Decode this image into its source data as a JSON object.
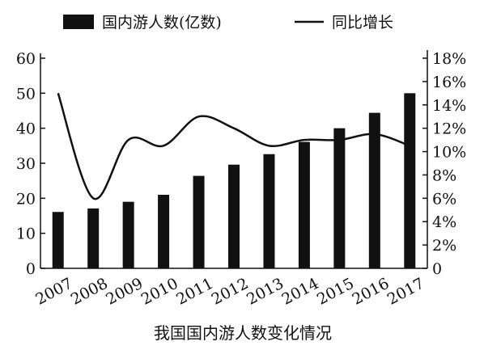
{
  "chart_data": {
    "type": "bar+line",
    "title": "我国国内游人数变化情况",
    "categories": [
      "2007",
      "2008",
      "2009",
      "2010",
      "2011",
      "2012",
      "2013",
      "2014",
      "2015",
      "2016",
      "2017"
    ],
    "series": [
      {
        "name": "国内游人数(亿数)",
        "type": "bar",
        "axis": "left",
        "values": [
          16.1,
          17.1,
          19.0,
          21.0,
          26.4,
          29.6,
          32.6,
          36.1,
          40.0,
          44.4,
          50.0
        ]
      },
      {
        "name": "同比增长",
        "type": "line",
        "axis": "right",
        "unit": "%",
        "values": [
          15.0,
          6.0,
          11.0,
          10.5,
          13.0,
          12.0,
          10.5,
          11.0,
          11.0,
          11.5,
          10.5
        ]
      }
    ],
    "y_left": {
      "range": [
        0,
        60
      ],
      "ticks": [
        "0",
        "10",
        "20",
        "30",
        "40",
        "50",
        "60"
      ]
    },
    "y_right": {
      "range": [
        0,
        18
      ],
      "ticks": [
        "0",
        "2%",
        "4%",
        "6%",
        "8%",
        "10%",
        "12%",
        "14%",
        "16%",
        "18%"
      ]
    },
    "colors": {
      "bar": "#111111",
      "line": "#111111"
    },
    "legend_position": "top",
    "grid": false
  }
}
